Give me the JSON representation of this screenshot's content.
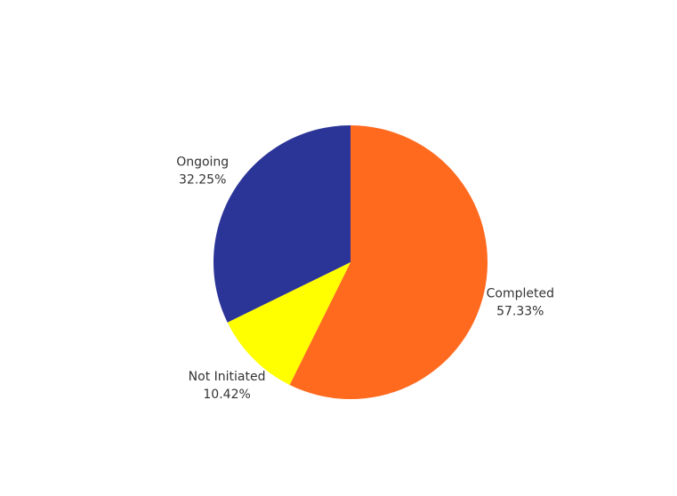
{
  "chart_data": {
    "type": "pie",
    "title": "",
    "slices": [
      {
        "name": "Completed",
        "label": "Completed",
        "percent_label": "57.33%",
        "value": 57.33,
        "color": "#FF6A1F"
      },
      {
        "name": "Not Initiated",
        "label": "Not Initiated",
        "percent_label": "10.42%",
        "value": 10.42,
        "color": "#FFFF00"
      },
      {
        "name": "Ongoing",
        "label": "Ongoing",
        "percent_label": "32.25%",
        "value": 32.25,
        "color": "#2B3497"
      }
    ],
    "start_angle": "12 o'clock",
    "direction": "clockwise",
    "legend": "none",
    "label_placement": "outside"
  }
}
